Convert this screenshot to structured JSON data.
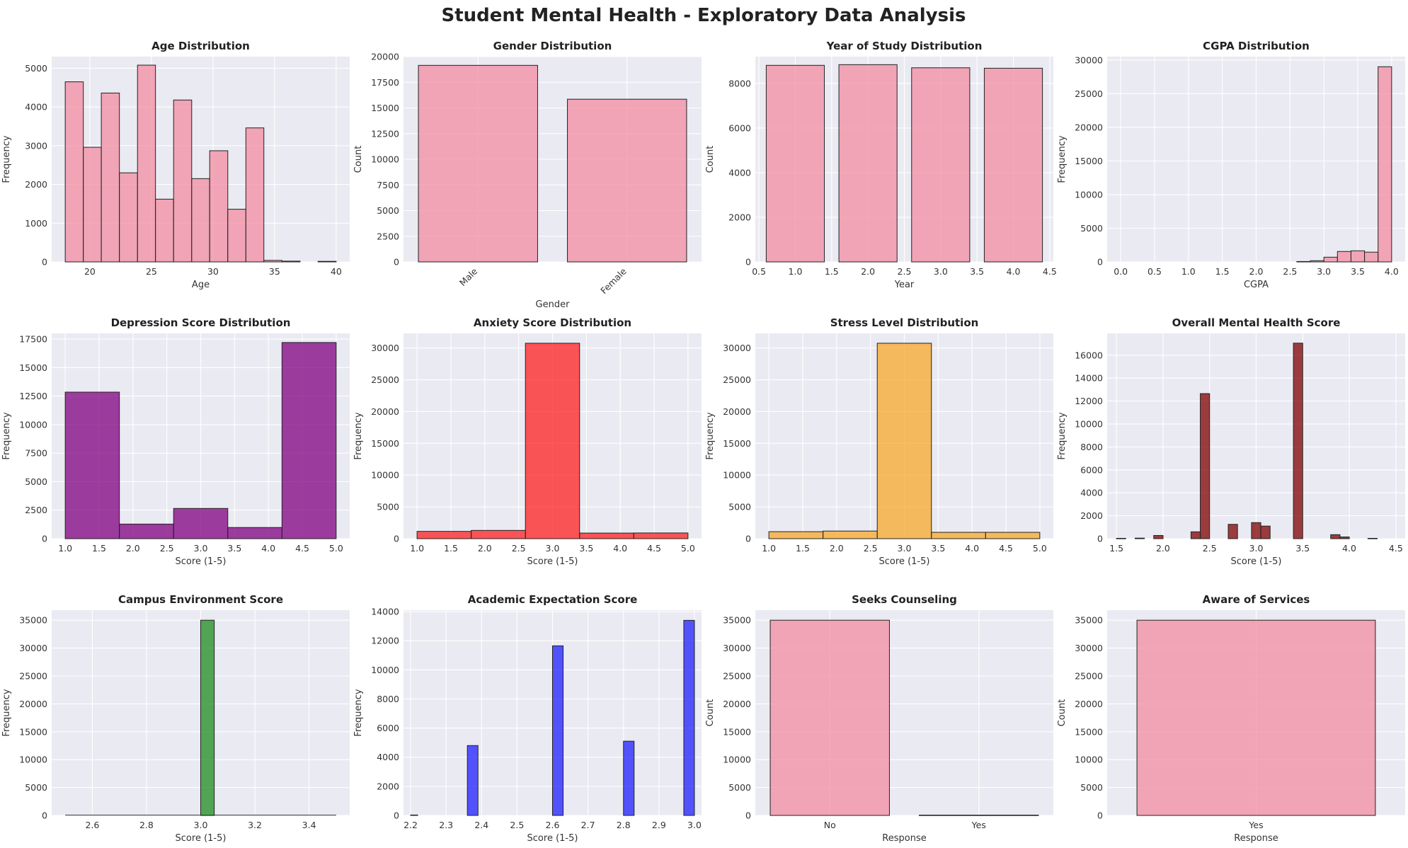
{
  "suptitle": "Student Mental Health - Exploratory Data Analysis",
  "colors": {
    "pink": "#f28ca0",
    "purple": "#800080",
    "red": "#ff2020",
    "orange": "#f7a82a",
    "maroon": "#7f0000",
    "green": "#1e8c1e",
    "blue": "#1f1fff",
    "axes_bg": "#eaeaf2",
    "grid": "#ffffff"
  },
  "chart_data": [
    {
      "id": "age",
      "type": "bar",
      "title": "Age Distribution",
      "xlabel": "Age",
      "ylabel": "Frequency",
      "xlim": [
        16.9,
        41.1
      ],
      "ylim": [
        0,
        5300
      ],
      "xticks": [
        20,
        25,
        30,
        35,
        40
      ],
      "yticks": [
        0,
        1000,
        2000,
        3000,
        4000,
        5000
      ],
      "color": "pink",
      "bins": [
        {
          "x0": 18.0,
          "x1": 19.47,
          "y": 4650
        },
        {
          "x0": 19.47,
          "x1": 20.93,
          "y": 2960
        },
        {
          "x0": 20.93,
          "x1": 22.4,
          "y": 4360
        },
        {
          "x0": 22.4,
          "x1": 23.87,
          "y": 2300
        },
        {
          "x0": 23.87,
          "x1": 25.33,
          "y": 5080
        },
        {
          "x0": 25.33,
          "x1": 26.8,
          "y": 1620
        },
        {
          "x0": 26.8,
          "x1": 28.27,
          "y": 4180
        },
        {
          "x0": 28.27,
          "x1": 29.73,
          "y": 2150
        },
        {
          "x0": 29.73,
          "x1": 31.2,
          "y": 2870
        },
        {
          "x0": 31.2,
          "x1": 32.67,
          "y": 1360
        },
        {
          "x0": 32.67,
          "x1": 34.13,
          "y": 3460
        },
        {
          "x0": 34.13,
          "x1": 35.6,
          "y": 40
        },
        {
          "x0": 35.6,
          "x1": 37.07,
          "y": 20
        },
        {
          "x0": 38.53,
          "x1": 40.0,
          "y": 15
        }
      ]
    },
    {
      "id": "gender",
      "type": "bar",
      "title": "Gender Distribution",
      "xlabel": "Gender",
      "ylabel": "Count",
      "xlim": [
        -0.5,
        1.5
      ],
      "ylim": [
        0,
        20000
      ],
      "yticks": [
        0,
        2500,
        5000,
        7500,
        10000,
        12500,
        15000,
        17500,
        20000
      ],
      "categories": [
        "Male",
        "Female"
      ],
      "cat_positions": [
        0,
        1
      ],
      "rotate": true,
      "color": "pink",
      "bins": [
        {
          "x0": -0.4,
          "x1": 0.4,
          "y": 19150
        },
        {
          "x0": 0.6,
          "x1": 1.4,
          "y": 15850
        }
      ]
    },
    {
      "id": "year",
      "type": "bar",
      "title": "Year of Study Distribution",
      "xlabel": "Year",
      "ylabel": "Count",
      "xlim": [
        0.45,
        4.55
      ],
      "ylim": [
        0,
        9200
      ],
      "xticks": [
        0.5,
        1.0,
        1.5,
        2.0,
        2.5,
        3.0,
        3.5,
        4.0,
        4.5
      ],
      "yticks": [
        0,
        2000,
        4000,
        6000,
        8000
      ],
      "color": "pink",
      "bins": [
        {
          "x0": 0.6,
          "x1": 1.4,
          "y": 8810
        },
        {
          "x0": 1.6,
          "x1": 2.4,
          "y": 8840
        },
        {
          "x0": 2.6,
          "x1": 3.4,
          "y": 8700
        },
        {
          "x0": 3.6,
          "x1": 4.4,
          "y": 8680
        }
      ]
    },
    {
      "id": "cgpa",
      "type": "bar",
      "title": "CGPA Distribution",
      "xlabel": "CGPA",
      "ylabel": "Frequency",
      "xlim": [
        -0.2,
        4.2
      ],
      "ylim": [
        0,
        30500
      ],
      "xticks": [
        0.0,
        0.5,
        1.0,
        1.5,
        2.0,
        2.5,
        3.0,
        3.5,
        4.0
      ],
      "yticks": [
        0,
        5000,
        10000,
        15000,
        20000,
        25000,
        30000
      ],
      "color": "pink",
      "bins": [
        {
          "x0": 2.6,
          "x1": 2.8,
          "y": 60
        },
        {
          "x0": 2.8,
          "x1": 3.0,
          "y": 180
        },
        {
          "x0": 3.0,
          "x1": 3.2,
          "y": 700
        },
        {
          "x0": 3.2,
          "x1": 3.4,
          "y": 1550
        },
        {
          "x0": 3.4,
          "x1": 3.6,
          "y": 1650
        },
        {
          "x0": 3.6,
          "x1": 3.8,
          "y": 1450
        },
        {
          "x0": 3.8,
          "x1": 4.0,
          "y": 29000
        }
      ]
    },
    {
      "id": "depression",
      "type": "bar",
      "title": "Depression Score Distribution",
      "xlabel": "Score (1-5)",
      "ylabel": "Frequency",
      "xlim": [
        0.8,
        5.2
      ],
      "ylim": [
        0,
        18000
      ],
      "xticks": [
        1.0,
        1.5,
        2.0,
        2.5,
        3.0,
        3.5,
        4.0,
        4.5,
        5.0
      ],
      "yticks": [
        0,
        2500,
        5000,
        7500,
        10000,
        12500,
        15000,
        17500
      ],
      "color": "purple",
      "bins": [
        {
          "x0": 1.0,
          "x1": 1.8,
          "y": 12850
        },
        {
          "x0": 1.8,
          "x1": 2.6,
          "y": 1280
        },
        {
          "x0": 2.6,
          "x1": 3.4,
          "y": 2650
        },
        {
          "x0": 3.4,
          "x1": 4.2,
          "y": 980
        },
        {
          "x0": 4.2,
          "x1": 5.0,
          "y": 17200
        }
      ]
    },
    {
      "id": "anxiety",
      "type": "bar",
      "title": "Anxiety Score Distribution",
      "xlabel": "Score (1-5)",
      "ylabel": "Frequency",
      "xlim": [
        0.8,
        5.2
      ],
      "ylim": [
        0,
        32300
      ],
      "xticks": [
        1.0,
        1.5,
        2.0,
        2.5,
        3.0,
        3.5,
        4.0,
        4.5,
        5.0
      ],
      "yticks": [
        0,
        5000,
        10000,
        15000,
        20000,
        25000,
        30000
      ],
      "color": "red",
      "bins": [
        {
          "x0": 1.0,
          "x1": 1.8,
          "y": 1150
        },
        {
          "x0": 1.8,
          "x1": 2.6,
          "y": 1300
        },
        {
          "x0": 2.6,
          "x1": 3.4,
          "y": 30750
        },
        {
          "x0": 3.4,
          "x1": 4.2,
          "y": 880
        },
        {
          "x0": 4.2,
          "x1": 5.0,
          "y": 900
        }
      ]
    },
    {
      "id": "stress",
      "type": "bar",
      "title": "Stress Level Distribution",
      "xlabel": "Score (1-5)",
      "ylabel": "Frequency",
      "xlim": [
        0.8,
        5.2
      ],
      "ylim": [
        0,
        32300
      ],
      "xticks": [
        1.0,
        1.5,
        2.0,
        2.5,
        3.0,
        3.5,
        4.0,
        4.5,
        5.0
      ],
      "yticks": [
        0,
        5000,
        10000,
        15000,
        20000,
        25000,
        30000
      ],
      "color": "orange",
      "bins": [
        {
          "x0": 1.0,
          "x1": 1.8,
          "y": 1100
        },
        {
          "x0": 1.8,
          "x1": 2.6,
          "y": 1200
        },
        {
          "x0": 2.6,
          "x1": 3.4,
          "y": 30750
        },
        {
          "x0": 3.4,
          "x1": 4.2,
          "y": 1000
        },
        {
          "x0": 4.2,
          "x1": 5.0,
          "y": 1000
        }
      ]
    },
    {
      "id": "overall",
      "type": "bar",
      "title": "Overall Mental Health Score",
      "xlabel": "Score (1-5)",
      "ylabel": "Frequency",
      "xlim": [
        1.4,
        4.6
      ],
      "ylim": [
        0,
        17900
      ],
      "xticks": [
        1.5,
        2.0,
        2.5,
        3.0,
        3.5,
        4.0,
        4.5
      ],
      "yticks": [
        0,
        2000,
        4000,
        6000,
        8000,
        10000,
        12000,
        14000,
        16000
      ],
      "color": "maroon",
      "bins": [
        {
          "x0": 1.5,
          "x1": 1.6,
          "y": 30
        },
        {
          "x0": 1.7,
          "x1": 1.8,
          "y": 50
        },
        {
          "x0": 1.9,
          "x1": 2.0,
          "y": 280
        },
        {
          "x0": 2.3,
          "x1": 2.4,
          "y": 600
        },
        {
          "x0": 2.4,
          "x1": 2.5,
          "y": 12650
        },
        {
          "x0": 2.7,
          "x1": 2.8,
          "y": 1250
        },
        {
          "x0": 2.95,
          "x1": 3.05,
          "y": 1400
        },
        {
          "x0": 3.05,
          "x1": 3.15,
          "y": 1100
        },
        {
          "x0": 3.4,
          "x1": 3.5,
          "y": 17050
        },
        {
          "x0": 3.8,
          "x1": 3.9,
          "y": 350
        },
        {
          "x0": 3.9,
          "x1": 4.0,
          "y": 150
        },
        {
          "x0": 4.2,
          "x1": 4.3,
          "y": 30
        }
      ]
    },
    {
      "id": "campus",
      "type": "bar",
      "title": "Campus Environment Score",
      "xlabel": "Score (1-5)",
      "ylabel": "Frequency",
      "xlim": [
        2.45,
        3.55
      ],
      "ylim": [
        0,
        36800
      ],
      "xticks": [
        2.6,
        2.8,
        3.0,
        3.2,
        3.4
      ],
      "yticks": [
        0,
        5000,
        10000,
        15000,
        20000,
        25000,
        30000,
        35000
      ],
      "color": "green",
      "baseline_x": [
        2.5,
        3.5
      ],
      "bins": [
        {
          "x0": 3.0,
          "x1": 3.05,
          "y": 35000
        }
      ]
    },
    {
      "id": "academic",
      "type": "bar",
      "title": "Academic Expectation Score",
      "xlabel": "Score (1-5)",
      "ylabel": "Frequency",
      "xlim": [
        2.18,
        3.02
      ],
      "ylim": [
        0,
        14100
      ],
      "xticks": [
        2.2,
        2.3,
        2.4,
        2.5,
        2.6,
        2.7,
        2.8,
        2.9,
        3.0
      ],
      "yticks": [
        0,
        2000,
        4000,
        6000,
        8000,
        10000,
        12000,
        14000
      ],
      "color": "blue",
      "bins": [
        {
          "x0": 2.2,
          "x1": 2.22,
          "y": 30
        },
        {
          "x0": 2.36,
          "x1": 2.39,
          "y": 4800
        },
        {
          "x0": 2.6,
          "x1": 2.63,
          "y": 11650
        },
        {
          "x0": 2.8,
          "x1": 2.83,
          "y": 5100
        },
        {
          "x0": 2.97,
          "x1": 3.0,
          "y": 13400
        }
      ]
    },
    {
      "id": "counseling",
      "type": "bar",
      "title": "Seeks Counseling",
      "xlabel": "Response",
      "ylabel": "Count",
      "xlim": [
        -0.5,
        1.5
      ],
      "ylim": [
        0,
        36800
      ],
      "yticks": [
        0,
        5000,
        10000,
        15000,
        20000,
        25000,
        30000,
        35000
      ],
      "categories": [
        "No",
        "Yes"
      ],
      "cat_positions": [
        0,
        1
      ],
      "color": "pink",
      "bins": [
        {
          "x0": -0.4,
          "x1": 0.4,
          "y": 35000
        },
        {
          "x0": 0.6,
          "x1": 1.4,
          "y": 60
        }
      ]
    },
    {
      "id": "aware",
      "type": "bar",
      "title": "Aware of Services",
      "xlabel": "Response",
      "ylabel": "Count",
      "xlim": [
        -0.5,
        0.5
      ],
      "ylim": [
        0,
        36800
      ],
      "yticks": [
        0,
        5000,
        10000,
        15000,
        20000,
        25000,
        30000,
        35000
      ],
      "categories": [
        "Yes"
      ],
      "cat_positions": [
        0
      ],
      "color": "pink",
      "bins": [
        {
          "x0": -0.4,
          "x1": 0.4,
          "y": 35000
        }
      ]
    }
  ]
}
